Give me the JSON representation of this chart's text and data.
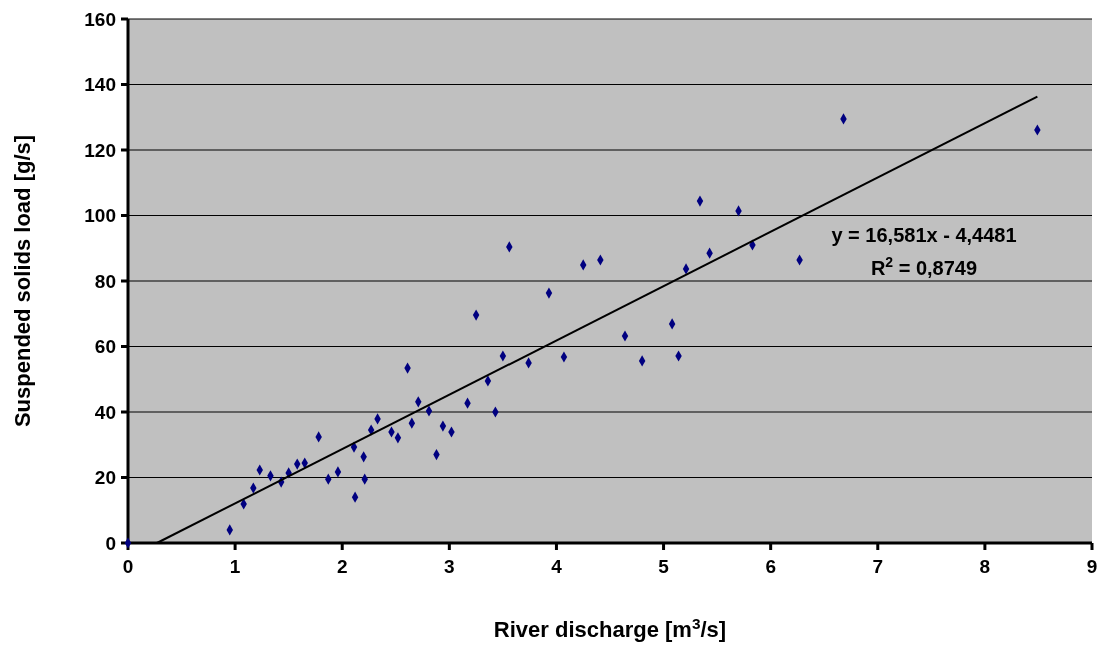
{
  "chart_data": {
    "type": "scatter",
    "xlabel": "River discharge [m$^{3}$/s]",
    "ylabel": "Suspended solids load [g/s]",
    "xlim": [
      0,
      9
    ],
    "xticks": [
      0,
      1,
      2,
      3,
      4,
      5,
      6,
      7,
      8,
      9
    ],
    "ylim": [
      0,
      160
    ],
    "yticks": [
      0,
      20,
      40,
      60,
      80,
      100,
      120,
      140,
      160
    ],
    "grid": "y",
    "marker": "diamond",
    "annotations": [
      "y = 16,581x - 4,4481",
      "R$^{2}$ = 0,8749"
    ],
    "series": [
      {
        "color": "#000080",
        "x": [
          0,
          0.95,
          1.08,
          1.17,
          1.23,
          1.33,
          1.43,
          1.5,
          1.58,
          1.65,
          1.78,
          1.87,
          1.96,
          2.11,
          2.12,
          2.2,
          2.21,
          2.27,
          2.33,
          2.46,
          2.52,
          2.61,
          2.65,
          2.71,
          2.81,
          2.88,
          2.94,
          3.02,
          3.17,
          3.25,
          3.36,
          3.43,
          3.5,
          3.56,
          3.74,
          3.93,
          4.07,
          4.25,
          4.41,
          4.64,
          4.8,
          5.08,
          5.14,
          5.21,
          5.34,
          5.43,
          5.7,
          5.83,
          6.27,
          6.68,
          8.49
        ],
        "values": [
          0,
          4,
          11.9,
          16.8,
          22.3,
          20.5,
          18.6,
          21.4,
          24.1,
          24.4,
          32.4,
          19.5,
          21.7,
          29.3,
          14,
          26.3,
          19.5,
          34.5,
          37.9,
          33.9,
          32.1,
          53.4,
          36.6,
          43.1,
          40.3,
          27,
          35.7,
          33.9,
          42.7,
          69.6,
          49.5,
          40,
          57.1,
          90.4,
          55,
          76.3,
          56.8,
          84.9,
          86.4,
          63.2,
          55.6,
          66.9,
          57.1,
          83.7,
          104.4,
          88.5,
          101.4,
          91,
          86.4,
          129.5,
          126.1
        ]
      },
      {
        "type": "line",
        "color": "#000000",
        "marker": "none",
        "x": [
          0.27,
          8.49
        ],
        "values": [
          0,
          136.3
        ]
      }
    ]
  }
}
